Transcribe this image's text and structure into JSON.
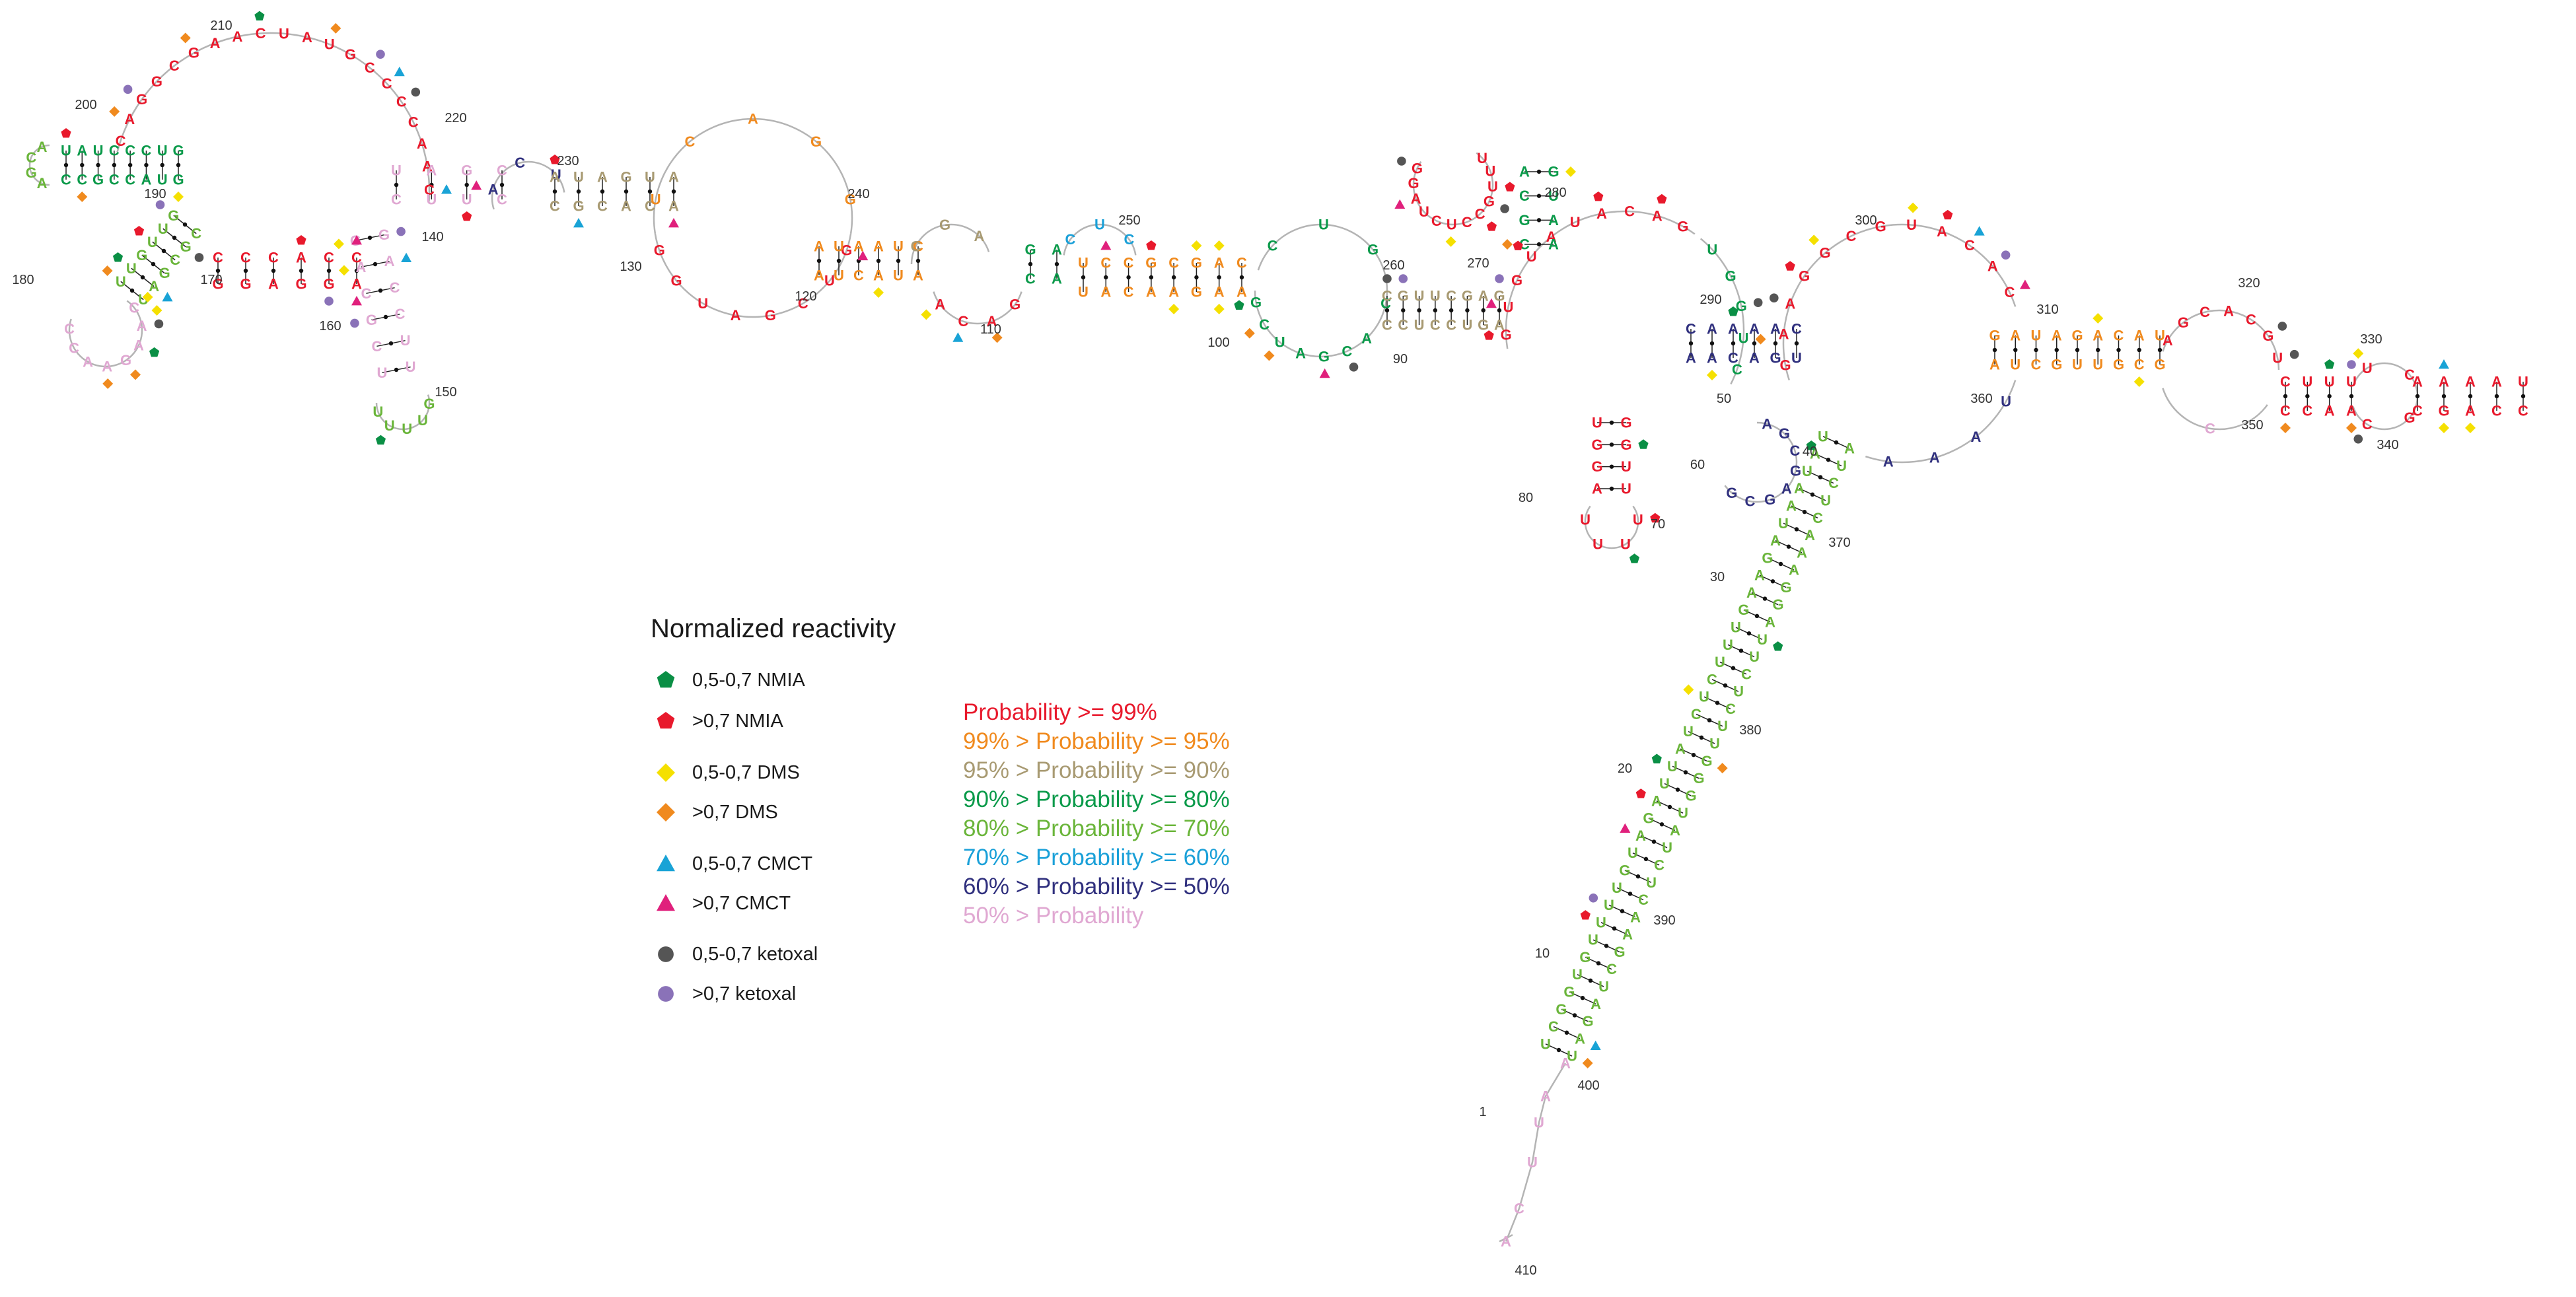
{
  "legend": {
    "title": "Normalized reactivity",
    "items": [
      {
        "label": "0,5-0,7 NMIA",
        "shape": "pentagon",
        "color": "#0a8f45"
      },
      {
        "label": ">0,7 NMIA",
        "shape": "pentagon",
        "color": "#e8192c"
      },
      {
        "label": "0,5-0,7 DMS",
        "shape": "diamond",
        "color": "#f5e000"
      },
      {
        "label": ">0,7 DMS",
        "shape": "diamond",
        "color": "#f08a1e"
      },
      {
        "label": "0,5-0,7 CMCT",
        "shape": "triangle",
        "color": "#19a3d6"
      },
      {
        "label": ">0,7 CMCT",
        "shape": "triangle",
        "color": "#e0207c"
      },
      {
        "label": "0,5-0,7 ketoxal",
        "shape": "circle",
        "color": "#555555"
      },
      {
        "label": ">0,7 ketoxal",
        "shape": "circle",
        "color": "#8a72b8"
      }
    ]
  },
  "probability_legend": [
    {
      "label": "Probability >= 99%",
      "color": "#e8192c"
    },
    {
      "label": "99% > Probability >= 95%",
      "color": "#f08a1e"
    },
    {
      "label": "95% > Probability >= 90%",
      "color": "#a89a72"
    },
    {
      "label": "90% > Probability >= 80%",
      "color": "#0a9a4a"
    },
    {
      "label": "80% > Probability >= 70%",
      "color": "#6ab53a"
    },
    {
      "label": "70% > Probability >= 60%",
      "color": "#1aa0d8"
    },
    {
      "label": "60% > Probability >= 50%",
      "color": "#30307e"
    },
    {
      "label": "50% > Probability",
      "color": "#e0a8d2"
    }
  ],
  "position_labels": [
    "1",
    "10",
    "20",
    "30",
    "40",
    "50",
    "60",
    "70",
    "80",
    "90",
    "100",
    "110",
    "120",
    "130",
    "140",
    "150",
    "160",
    "170",
    "180",
    "190",
    "200",
    "210",
    "220",
    "230",
    "240",
    "250",
    "260",
    "270",
    "280",
    "290",
    "300",
    "310",
    "320",
    "330",
    "340",
    "350",
    "360",
    "370",
    "380",
    "390",
    "400",
    "410"
  ],
  "nucleotide_letters": [
    "A",
    "C",
    "G",
    "U"
  ]
}
